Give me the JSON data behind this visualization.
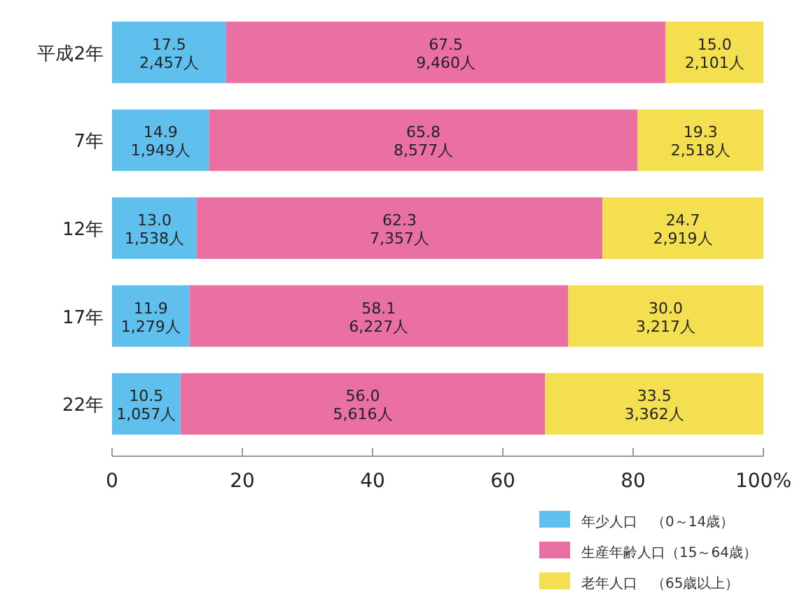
{
  "chart_data": {
    "type": "bar",
    "orientation": "horizontal",
    "stacked": true,
    "categories": [
      "平成2年",
      "7年",
      "12年",
      "17年",
      "22年"
    ],
    "series": [
      {
        "name": "年少人口　（0～14歳）",
        "color": "#5fc0ee",
        "values": [
          17.5,
          14.9,
          13.0,
          11.9,
          10.5
        ],
        "value_labels": [
          "17.5\n2,457人",
          "14.9\n1,949人",
          "13.0\n1,538人",
          "11.9\n1,279人",
          "10.5\n1,057人"
        ]
      },
      {
        "name": "生産年齢人口（15～64歳）",
        "color": "#ea6fa3",
        "values": [
          67.5,
          65.8,
          62.3,
          58.1,
          56.0
        ],
        "value_labels": [
          "67.5\n9,460人",
          "65.8\n8,577人",
          "62.3\n7,357人",
          "58.1\n6,227人",
          "56.0\n5,616人"
        ]
      },
      {
        "name": "老年人口　（65歳以上）",
        "color": "#f3df4f",
        "values": [
          15.0,
          19.3,
          24.7,
          30.0,
          33.5
        ],
        "value_labels": [
          "15.0\n2,101人",
          "19.3\n2,518人",
          "24.7\n2,919人",
          "30.0\n3,217人",
          "33.5\n3,362人"
        ]
      }
    ],
    "xlim": [
      0,
      100
    ],
    "xticks": [
      0,
      20,
      40,
      60,
      80,
      {
        "value": 100,
        "label": "100%"
      }
    ],
    "grid": false,
    "legend": "bottom right"
  }
}
